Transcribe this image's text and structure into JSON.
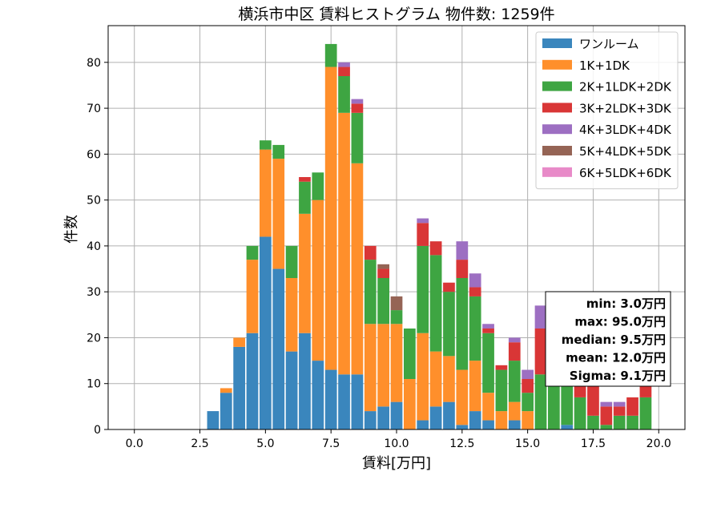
{
  "colors": {
    "series": [
      "#3a86bd",
      "#ff8f2b",
      "#3ea542",
      "#d93636",
      "#9d6fc2",
      "#956455",
      "#e88ac8"
    ],
    "grid": "#b0b0b0",
    "axis": "#000000",
    "background": "#ffffff"
  },
  "chart_data": {
    "type": "bar",
    "stacked": true,
    "title": "横浜市中区 賃料ヒストグラム 物件数: 1259件",
    "xlabel": "賃料[万円]",
    "ylabel": "件数",
    "xlim": [
      -1.0,
      21.0
    ],
    "ylim": [
      0,
      88
    ],
    "x_ticks": [
      0.0,
      2.5,
      5.0,
      7.5,
      10.0,
      12.5,
      15.0,
      17.5,
      20.0
    ],
    "x_tick_labels": [
      "0.0",
      "2.5",
      "5.0",
      "7.5",
      "10.0",
      "12.5",
      "15.0",
      "17.5",
      "20.0"
    ],
    "y_ticks": [
      0,
      10,
      20,
      30,
      40,
      50,
      60,
      70,
      80
    ],
    "y_tick_labels": [
      "0",
      "10",
      "20",
      "30",
      "40",
      "50",
      "60",
      "70",
      "80"
    ],
    "grid": true,
    "legend_position": "top-right",
    "bin_width": 0.5,
    "x": [
      3.0,
      3.5,
      4.0,
      4.5,
      5.0,
      5.5,
      6.0,
      6.5,
      7.0,
      7.5,
      8.0,
      8.5,
      9.0,
      9.5,
      10.0,
      10.5,
      11.0,
      11.5,
      12.0,
      12.5,
      13.0,
      13.5,
      14.0,
      14.5,
      15.0,
      15.5,
      16.0,
      16.5,
      17.0,
      17.5,
      18.0,
      18.5,
      19.0,
      19.5
    ],
    "series": [
      {
        "name": "ワンルーム",
        "values": [
          4,
          8,
          18,
          21,
          42,
          35,
          17,
          21,
          15,
          13,
          12,
          12,
          4,
          5,
          6,
          0,
          2,
          5,
          6,
          1,
          4,
          2,
          0,
          2,
          0,
          0,
          0,
          1,
          0,
          0,
          0,
          0,
          0,
          0
        ]
      },
      {
        "name": "1K+1DK",
        "values": [
          0,
          1,
          2,
          16,
          19,
          24,
          16,
          26,
          35,
          66,
          57,
          46,
          19,
          18,
          17,
          11,
          19,
          12,
          10,
          12,
          11,
          6,
          4,
          4,
          4,
          0,
          0,
          0,
          0,
          0,
          0,
          0,
          0,
          0
        ]
      },
      {
        "name": "2K+1LDK+2DK",
        "values": [
          0,
          0,
          0,
          3,
          2,
          3,
          7,
          7,
          6,
          5,
          8,
          11,
          14,
          10,
          3,
          11,
          19,
          21,
          14,
          20,
          14,
          13,
          9,
          9,
          4,
          12,
          12,
          10,
          7,
          3,
          1,
          3,
          3,
          7
        ]
      },
      {
        "name": "3K+2LDK+3DK",
        "values": [
          0,
          0,
          0,
          0,
          0,
          0,
          0,
          1,
          0,
          0,
          2,
          2,
          3,
          2,
          0,
          0,
          5,
          3,
          2,
          4,
          2,
          1,
          1,
          4,
          3,
          10,
          6,
          5,
          6,
          7,
          4,
          2,
          4,
          6
        ]
      },
      {
        "name": "4K+3LDK+4DK",
        "values": [
          0,
          0,
          0,
          0,
          0,
          0,
          0,
          0,
          0,
          0,
          1,
          1,
          0,
          0,
          0,
          0,
          1,
          0,
          0,
          4,
          3,
          1,
          0,
          1,
          2,
          5,
          0,
          0,
          1,
          0,
          1,
          1,
          0,
          0
        ]
      },
      {
        "name": "5K+4LDK+5DK",
        "values": [
          0,
          0,
          0,
          0,
          0,
          0,
          0,
          0,
          0,
          0,
          0,
          0,
          0,
          1,
          3,
          0,
          0,
          0,
          0,
          0,
          0,
          0,
          0,
          0,
          0,
          0,
          0,
          0,
          0,
          0,
          0,
          0,
          0,
          0
        ]
      },
      {
        "name": "6K+5LDK+6DK",
        "values": [
          0,
          0,
          0,
          0,
          0,
          0,
          0,
          0,
          0,
          0,
          0,
          0,
          0,
          0,
          0,
          0,
          0,
          0,
          0,
          0,
          0,
          0,
          0,
          0,
          0,
          0,
          0,
          0,
          0,
          0,
          0,
          0,
          0,
          0
        ]
      }
    ],
    "stats_box": {
      "position": "right-middle",
      "lines": [
        "min: 3.0万円",
        "max: 95.0万円",
        "median: 9.5万円",
        "mean: 12.0万円",
        "Sigma: 9.1万円"
      ]
    }
  }
}
